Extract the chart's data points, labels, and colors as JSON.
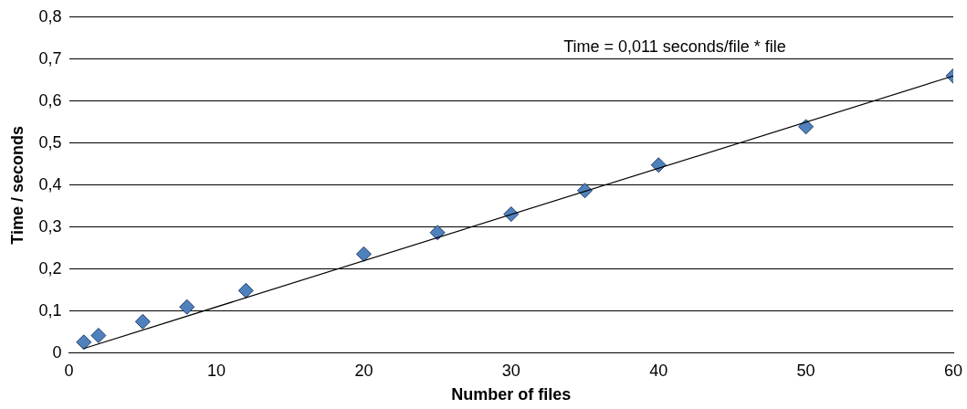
{
  "chart_data": {
    "type": "scatter",
    "xlabel": "Number of files",
    "ylabel": "Time / seconds",
    "series": [
      {
        "color": "#4f81bd",
        "x": [
          1,
          2,
          5,
          8,
          12,
          20,
          25,
          30,
          35,
          40,
          50,
          60
        ],
        "values": [
          0.026,
          0.042,
          0.075,
          0.11,
          0.149,
          0.236,
          0.287,
          0.331,
          0.387,
          0.448,
          0.539,
          0.66
        ]
      },
      {
        "type": "line",
        "color": "#000000",
        "marker": "none",
        "x": [
          1,
          60
        ],
        "values": [
          0.011,
          0.66
        ]
      }
    ],
    "annotations": [
      "Time = 0,011 seconds/file * file"
    ],
    "xlim": [
      0,
      60
    ],
    "xticks": [
      0,
      10,
      20,
      30,
      40,
      50,
      60
    ],
    "ylim": [
      0,
      0.8
    ],
    "yticks": [
      0,
      {
        "value": 0.1,
        "label": "0,1"
      },
      {
        "value": 0.2,
        "label": "0,2"
      },
      {
        "value": 0.3,
        "label": "0,3"
      },
      {
        "value": 0.4,
        "label": "0,4"
      },
      {
        "value": 0.5,
        "label": "0,5"
      },
      {
        "value": 0.6,
        "label": "0,6"
      },
      {
        "value": 0.7,
        "label": "0,7"
      },
      {
        "value": 0.8,
        "label": "0,8"
      }
    ],
    "grid": "y",
    "legend": false,
    "marker": "diamond",
    "line_style": "solid"
  }
}
